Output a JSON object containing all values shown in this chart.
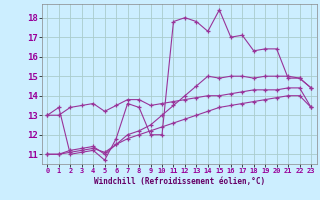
{
  "xlabel": "Windchill (Refroidissement éolien,°C)",
  "background_color": "#cceeff",
  "grid_color": "#aacccc",
  "line_color": "#993399",
  "xlim": [
    -0.5,
    23.5
  ],
  "ylim": [
    10.5,
    18.7
  ],
  "xticks": [
    0,
    1,
    2,
    3,
    4,
    5,
    6,
    7,
    8,
    9,
    10,
    11,
    12,
    13,
    14,
    15,
    16,
    17,
    18,
    19,
    20,
    21,
    22,
    23
  ],
  "yticks": [
    11,
    12,
    13,
    14,
    15,
    16,
    17,
    18
  ],
  "series": [
    [
      13.0,
      13.4,
      11.0,
      11.1,
      11.2,
      10.7,
      11.8,
      13.6,
      13.4,
      12.0,
      12.0,
      17.8,
      18.0,
      17.8,
      17.3,
      18.4,
      17.0,
      17.1,
      16.3,
      16.4,
      16.4,
      14.9,
      14.9,
      14.4
    ],
    [
      13.0,
      13.0,
      13.4,
      13.5,
      13.6,
      13.2,
      13.5,
      13.8,
      13.8,
      13.5,
      13.6,
      13.7,
      13.8,
      13.9,
      14.0,
      14.0,
      14.1,
      14.2,
      14.3,
      14.3,
      14.3,
      14.4,
      14.4,
      13.4
    ],
    [
      11.0,
      11.0,
      11.2,
      11.3,
      11.4,
      11.0,
      11.5,
      12.0,
      12.2,
      12.5,
      13.0,
      13.5,
      14.0,
      14.5,
      15.0,
      14.9,
      15.0,
      15.0,
      14.9,
      15.0,
      15.0,
      15.0,
      14.9,
      14.4
    ],
    [
      11.0,
      11.0,
      11.1,
      11.2,
      11.3,
      11.1,
      11.5,
      11.8,
      12.0,
      12.2,
      12.4,
      12.6,
      12.8,
      13.0,
      13.2,
      13.4,
      13.5,
      13.6,
      13.7,
      13.8,
      13.9,
      14.0,
      14.0,
      13.4
    ]
  ]
}
